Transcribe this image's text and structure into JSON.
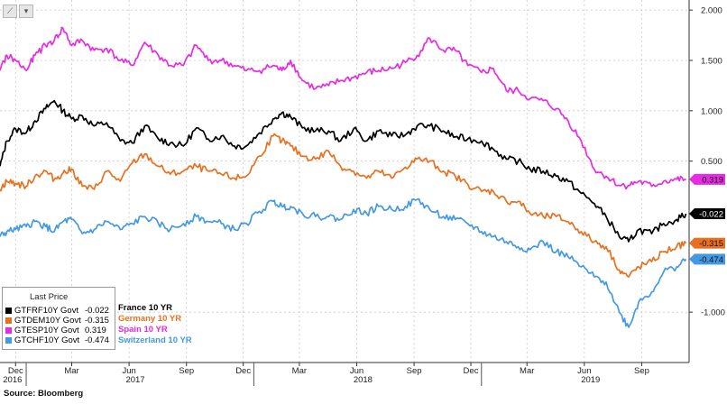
{
  "source": "Source: Bloomberg",
  "legend": {
    "title": "Last Price",
    "entries": [
      {
        "ticker": "GTFRF10Y Govt",
        "value": "-0.022",
        "color": "#000000",
        "name": "France 10 YR"
      },
      {
        "ticker": "GTDEM10Y Govt",
        "value": "-0.315",
        "color": "#e8701e",
        "name": "Germany 10 YR"
      },
      {
        "ticker": "GTESP10Y Govt",
        "value": "0.319",
        "color": "#e62ce3",
        "name": "Spain 10 YR"
      },
      {
        "ticker": "GTCHF10Y Govt",
        "value": "-0.474",
        "color": "#4499e2",
        "name": "Switzerland 10 YR"
      }
    ]
  },
  "toolbar": {
    "icons": [
      "chart-type-icon",
      "dropdown-chevron-icon"
    ],
    "glyphs": [
      "⟋",
      "▾"
    ]
  },
  "chart_data": {
    "type": "line",
    "title": "",
    "xlabel": "",
    "ylabel": "",
    "x_range": [
      "2016-11-20",
      "2019-11-30"
    ],
    "ylim": [
      -1.5,
      2.1
    ],
    "y_ticks": [
      2.0,
      1.5,
      1.0,
      0.5,
      -1.0
    ],
    "y_tick_labels": [
      "2.000",
      "1.500",
      "1.000",
      "0.500",
      "-1.000"
    ],
    "x_month_ticks": [
      {
        "date": "2016-12-15",
        "label": "Dec"
      },
      {
        "date": "2017-03-15",
        "label": "Mar"
      },
      {
        "date": "2017-06-15",
        "label": "Jun"
      },
      {
        "date": "2017-09-15",
        "label": "Sep"
      },
      {
        "date": "2017-12-15",
        "label": "Dec"
      },
      {
        "date": "2018-03-15",
        "label": "Mar"
      },
      {
        "date": "2018-06-15",
        "label": "Jun"
      },
      {
        "date": "2018-09-15",
        "label": "Sep"
      },
      {
        "date": "2018-12-15",
        "label": "Dec"
      },
      {
        "date": "2019-03-15",
        "label": "Mar"
      },
      {
        "date": "2019-06-15",
        "label": "Jun"
      },
      {
        "date": "2019-09-15",
        "label": "Sep"
      }
    ],
    "x_year_labels": [
      {
        "date": "2016-12-10",
        "label": "2016"
      },
      {
        "date": "2017-06-25",
        "label": "2017"
      },
      {
        "date": "2018-06-25",
        "label": "2018"
      },
      {
        "date": "2019-06-25",
        "label": "2019"
      }
    ],
    "year_dividers": [
      "2017-01-01",
      "2018-01-01",
      "2019-01-01"
    ],
    "grid": true,
    "legend_position": "bottom-left",
    "series": [
      {
        "name": "France 10 YR",
        "color": "#000000",
        "last": "-0.022",
        "x": [
          "2016-11-20",
          "2016-12-01",
          "2016-12-15",
          "2017-01-01",
          "2017-01-15",
          "2017-02-01",
          "2017-02-15",
          "2017-03-01",
          "2017-03-15",
          "2017-04-01",
          "2017-04-20",
          "2017-05-10",
          "2017-06-01",
          "2017-06-20",
          "2017-07-10",
          "2017-08-01",
          "2017-08-20",
          "2017-09-10",
          "2017-10-01",
          "2017-10-20",
          "2017-11-10",
          "2017-12-01",
          "2017-12-20",
          "2018-01-10",
          "2018-02-01",
          "2018-02-15",
          "2018-03-01",
          "2018-03-20",
          "2018-04-10",
          "2018-05-01",
          "2018-05-20",
          "2018-06-10",
          "2018-07-01",
          "2018-07-20",
          "2018-08-10",
          "2018-09-01",
          "2018-09-20",
          "2018-10-10",
          "2018-11-01",
          "2018-11-20",
          "2018-12-10",
          "2019-01-01",
          "2019-01-20",
          "2019-02-10",
          "2019-03-01",
          "2019-03-20",
          "2019-04-10",
          "2019-05-01",
          "2019-05-20",
          "2019-06-10",
          "2019-07-01",
          "2019-07-20",
          "2019-08-10",
          "2019-08-25",
          "2019-09-10",
          "2019-10-01",
          "2019-10-20",
          "2019-11-10",
          "2019-11-25"
        ],
        "y": [
          0.45,
          0.7,
          0.82,
          0.78,
          0.9,
          1.02,
          1.1,
          1.0,
          0.92,
          0.95,
          0.85,
          0.88,
          0.7,
          0.68,
          0.85,
          0.72,
          0.68,
          0.65,
          0.83,
          0.72,
          0.75,
          0.65,
          0.65,
          0.78,
          0.92,
          0.98,
          0.94,
          0.83,
          0.8,
          0.8,
          0.7,
          0.82,
          0.7,
          0.8,
          0.75,
          0.76,
          0.85,
          0.85,
          0.8,
          0.74,
          0.72,
          0.7,
          0.62,
          0.52,
          0.5,
          0.42,
          0.4,
          0.35,
          0.3,
          0.18,
          0.08,
          -0.05,
          -0.25,
          -0.3,
          -0.18,
          -0.22,
          -0.12,
          -0.08,
          -0.022
        ]
      },
      {
        "name": "Germany 10 YR",
        "color": "#e8701e",
        "last": "-0.315",
        "x": [
          "2016-11-20",
          "2016-12-01",
          "2016-12-15",
          "2017-01-01",
          "2017-01-15",
          "2017-02-01",
          "2017-02-15",
          "2017-03-01",
          "2017-03-15",
          "2017-04-01",
          "2017-04-20",
          "2017-05-10",
          "2017-06-01",
          "2017-06-20",
          "2017-07-10",
          "2017-08-01",
          "2017-08-20",
          "2017-09-10",
          "2017-10-01",
          "2017-10-20",
          "2017-11-10",
          "2017-12-01",
          "2017-12-20",
          "2018-01-10",
          "2018-02-01",
          "2018-02-15",
          "2018-03-01",
          "2018-03-20",
          "2018-04-10",
          "2018-05-01",
          "2018-05-20",
          "2018-06-10",
          "2018-07-01",
          "2018-07-20",
          "2018-08-10",
          "2018-09-01",
          "2018-09-20",
          "2018-10-10",
          "2018-11-01",
          "2018-11-20",
          "2018-12-10",
          "2019-01-01",
          "2019-01-20",
          "2019-02-10",
          "2019-03-01",
          "2019-03-20",
          "2019-04-10",
          "2019-05-01",
          "2019-05-20",
          "2019-06-10",
          "2019-07-01",
          "2019-07-20",
          "2019-08-10",
          "2019-08-25",
          "2019-09-10",
          "2019-10-01",
          "2019-10-20",
          "2019-11-10",
          "2019-11-25"
        ],
        "y": [
          0.22,
          0.3,
          0.28,
          0.25,
          0.35,
          0.4,
          0.32,
          0.38,
          0.42,
          0.25,
          0.22,
          0.4,
          0.3,
          0.48,
          0.57,
          0.45,
          0.37,
          0.4,
          0.45,
          0.4,
          0.37,
          0.33,
          0.35,
          0.55,
          0.75,
          0.7,
          0.65,
          0.55,
          0.52,
          0.6,
          0.45,
          0.4,
          0.33,
          0.4,
          0.33,
          0.44,
          0.52,
          0.5,
          0.4,
          0.35,
          0.27,
          0.2,
          0.2,
          0.1,
          0.1,
          -0.02,
          -0.05,
          -0.05,
          -0.1,
          -0.2,
          -0.3,
          -0.35,
          -0.58,
          -0.65,
          -0.55,
          -0.5,
          -0.4,
          -0.35,
          -0.315
        ]
      },
      {
        "name": "Spain 10 YR",
        "color": "#e62ce3",
        "last": "0.319",
        "x": [
          "2016-11-20",
          "2016-12-01",
          "2016-12-15",
          "2017-01-01",
          "2017-01-15",
          "2017-02-01",
          "2017-02-15",
          "2017-03-01",
          "2017-03-15",
          "2017-04-01",
          "2017-04-20",
          "2017-05-10",
          "2017-06-01",
          "2017-06-20",
          "2017-07-10",
          "2017-08-01",
          "2017-08-20",
          "2017-09-10",
          "2017-10-01",
          "2017-10-20",
          "2017-11-10",
          "2017-12-01",
          "2017-12-20",
          "2018-01-10",
          "2018-02-01",
          "2018-02-15",
          "2018-03-01",
          "2018-03-20",
          "2018-04-10",
          "2018-05-01",
          "2018-05-20",
          "2018-06-10",
          "2018-07-01",
          "2018-07-20",
          "2018-08-10",
          "2018-09-01",
          "2018-09-20",
          "2018-10-10",
          "2018-11-01",
          "2018-11-20",
          "2018-12-10",
          "2019-01-01",
          "2019-01-20",
          "2019-02-10",
          "2019-03-01",
          "2019-03-20",
          "2019-04-10",
          "2019-05-01",
          "2019-05-20",
          "2019-06-10",
          "2019-07-01",
          "2019-07-20",
          "2019-08-10",
          "2019-08-25",
          "2019-09-10",
          "2019-10-01",
          "2019-10-20",
          "2019-11-10",
          "2019-11-25"
        ],
        "y": [
          1.4,
          1.55,
          1.5,
          1.4,
          1.55,
          1.65,
          1.7,
          1.82,
          1.65,
          1.7,
          1.6,
          1.62,
          1.5,
          1.45,
          1.68,
          1.55,
          1.45,
          1.45,
          1.65,
          1.5,
          1.5,
          1.45,
          1.4,
          1.4,
          1.45,
          1.4,
          1.5,
          1.3,
          1.22,
          1.25,
          1.3,
          1.33,
          1.38,
          1.4,
          1.42,
          1.48,
          1.55,
          1.72,
          1.6,
          1.6,
          1.45,
          1.38,
          1.42,
          1.2,
          1.2,
          1.12,
          1.1,
          1.02,
          0.9,
          0.7,
          0.42,
          0.35,
          0.26,
          0.26,
          0.3,
          0.25,
          0.3,
          0.32,
          0.319
        ]
      },
      {
        "name": "Switzerland 10 YR",
        "color": "#4499e2",
        "last": "-0.474",
        "x": [
          "2016-11-20",
          "2016-12-01",
          "2016-12-15",
          "2017-01-01",
          "2017-01-15",
          "2017-02-01",
          "2017-02-15",
          "2017-03-01",
          "2017-03-15",
          "2017-04-01",
          "2017-04-20",
          "2017-05-10",
          "2017-06-01",
          "2017-06-20",
          "2017-07-10",
          "2017-08-01",
          "2017-08-20",
          "2017-09-10",
          "2017-10-01",
          "2017-10-20",
          "2017-11-10",
          "2017-12-01",
          "2017-12-20",
          "2018-01-10",
          "2018-02-01",
          "2018-02-15",
          "2018-03-01",
          "2018-03-20",
          "2018-04-10",
          "2018-05-01",
          "2018-05-20",
          "2018-06-10",
          "2018-07-01",
          "2018-07-20",
          "2018-08-10",
          "2018-09-01",
          "2018-09-20",
          "2018-10-10",
          "2018-11-01",
          "2018-11-20",
          "2018-12-10",
          "2019-01-01",
          "2019-01-20",
          "2019-02-10",
          "2019-03-01",
          "2019-03-20",
          "2019-04-10",
          "2019-05-01",
          "2019-05-20",
          "2019-06-10",
          "2019-07-01",
          "2019-07-20",
          "2019-08-10",
          "2019-08-25",
          "2019-09-10",
          "2019-10-01",
          "2019-10-20",
          "2019-11-10",
          "2019-11-25"
        ],
        "y": [
          -0.25,
          -0.2,
          -0.18,
          -0.15,
          -0.1,
          -0.15,
          -0.2,
          -0.1,
          -0.08,
          -0.22,
          -0.18,
          -0.1,
          -0.18,
          -0.12,
          -0.05,
          -0.12,
          -0.18,
          -0.12,
          -0.05,
          -0.1,
          -0.12,
          -0.18,
          -0.12,
          0.0,
          0.1,
          0.05,
          0.05,
          -0.02,
          -0.05,
          -0.05,
          -0.08,
          0.02,
          -0.02,
          0.05,
          0.02,
          0.05,
          0.12,
          0.02,
          -0.05,
          -0.08,
          -0.12,
          -0.2,
          -0.25,
          -0.3,
          -0.35,
          -0.38,
          -0.3,
          -0.4,
          -0.45,
          -0.55,
          -0.65,
          -0.7,
          -1.0,
          -1.15,
          -0.9,
          -0.8,
          -0.6,
          -0.55,
          -0.474
        ]
      }
    ]
  }
}
